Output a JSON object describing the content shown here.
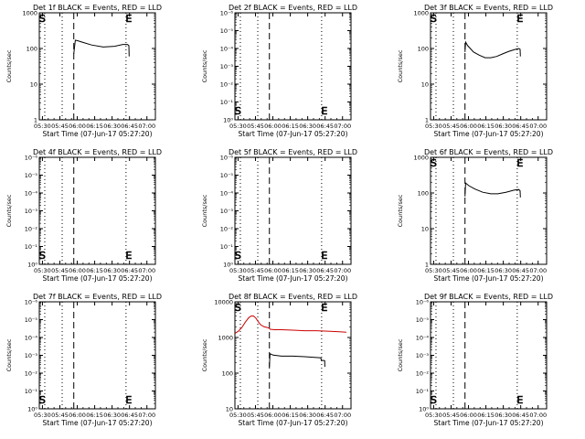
{
  "chart_data": [
    {
      "type": "line",
      "title": "Det 1f BLACK = Events, RED = LLD",
      "xlabel": "Start Time (07-Jun-17 05:27:20)",
      "ylabel": "Counts/sec",
      "x_ticks": [
        "05:30",
        "05:45",
        "06:00",
        "06:15",
        "06:30",
        "06:45",
        "07:00"
      ],
      "x_range_min": [
        0,
        100
      ],
      "yscale": "log",
      "y_ticks": [
        "1",
        "10",
        "100",
        "1000"
      ],
      "ylim": [
        1,
        1000
      ],
      "markers": [
        {
          "label": "S",
          "x_min": 2.7
        },
        {
          "label": "E",
          "x_min": 77
        }
      ],
      "dotted_lines_min": [
        4.7,
        19.7,
        74.7
      ],
      "dashed_lines_min": [
        29.7
      ],
      "series": [
        {
          "color": "#000000",
          "x": [
            29.7,
            31,
            33,
            37,
            45,
            55,
            65,
            72,
            76,
            77.2,
            77.4
          ],
          "y": [
            70,
            170,
            165,
            150,
            125,
            110,
            115,
            130,
            130,
            120,
            60
          ]
        }
      ]
    },
    {
      "type": "line",
      "title": "Det 2f BLACK = Events, RED = LLD",
      "xlabel": "Start Time (07-Jun-17 05:27:20)",
      "ylabel": "Counts/sec",
      "x_ticks": [
        "05:30",
        "05:45",
        "06:00",
        "06:15",
        "06:30",
        "06:45",
        "07:00"
      ],
      "x_range_min": [
        0,
        100
      ],
      "yscale": "log",
      "y_ticks": [
        "10⁰",
        "10⁻¹",
        "10⁻²",
        "10⁻³",
        "10⁻⁴",
        "10⁻⁵",
        "10⁻⁶"
      ],
      "markers": [
        {
          "label": "S",
          "x_min": 2.7
        },
        {
          "label": "E",
          "x_min": 77
        }
      ],
      "dotted_lines_min": [
        4.7,
        19.7,
        74.7
      ],
      "dashed_lines_min": [
        29.7
      ],
      "series": []
    },
    {
      "type": "line",
      "title": "Det 3f BLACK = Events, RED = LLD",
      "xlabel": "Start Time (07-Jun-17 05:27:20)",
      "ylabel": "Counts/sec",
      "x_ticks": [
        "05:30",
        "05:45",
        "06:00",
        "06:15",
        "06:30",
        "06:45",
        "07:00"
      ],
      "x_range_min": [
        0,
        100
      ],
      "yscale": "log",
      "y_ticks": [
        "1",
        "10",
        "100",
        "1000"
      ],
      "ylim": [
        1,
        1000
      ],
      "markers": [
        {
          "label": "S",
          "x_min": 2.7
        },
        {
          "label": "E",
          "x_min": 77
        }
      ],
      "dotted_lines_min": [
        4.7,
        19.7,
        74.7
      ],
      "dashed_lines_min": [
        29.7
      ],
      "series": [
        {
          "color": "#000000",
          "x": [
            29.7,
            30.2,
            32,
            37,
            42,
            47,
            52,
            57,
            62,
            67,
            72,
            76,
            77.2,
            77.4
          ],
          "y": [
            80,
            150,
            120,
            80,
            65,
            55,
            55,
            60,
            70,
            82,
            92,
            100,
            95,
            60
          ]
        }
      ]
    },
    {
      "type": "line",
      "title": "Det 4f BLACK = Events, RED = LLD",
      "xlabel": "Start Time (07-Jun-17 05:27:20)",
      "ylabel": "Counts/sec",
      "x_ticks": [
        "05:30",
        "05:45",
        "06:00",
        "06:15",
        "06:30",
        "06:45",
        "07:00"
      ],
      "x_range_min": [
        0,
        100
      ],
      "yscale": "log",
      "y_ticks": [
        "10⁰",
        "10⁻¹",
        "10⁻²",
        "10⁻³",
        "10⁻⁴",
        "10⁻⁵",
        "10⁻⁶"
      ],
      "markers": [
        {
          "label": "S",
          "x_min": 2.7
        },
        {
          "label": "E",
          "x_min": 77
        }
      ],
      "dotted_lines_min": [
        4.7,
        19.7,
        74.7
      ],
      "dashed_lines_min": [
        29.7
      ],
      "series": []
    },
    {
      "type": "line",
      "title": "Det 5f BLACK = Events, RED = LLD",
      "xlabel": "Start Time (07-Jun-17 05:27:20)",
      "ylabel": "Counts/sec",
      "x_ticks": [
        "05:30",
        "05:45",
        "06:00",
        "06:15",
        "06:30",
        "06:45",
        "07:00"
      ],
      "x_range_min": [
        0,
        100
      ],
      "yscale": "log",
      "y_ticks": [
        "10⁰",
        "10⁻¹",
        "10⁻²",
        "10⁻³",
        "10⁻⁴",
        "10⁻⁵",
        "10⁻⁶"
      ],
      "markers": [
        {
          "label": "S",
          "x_min": 2.7
        },
        {
          "label": "E",
          "x_min": 77
        }
      ],
      "dotted_lines_min": [
        4.7,
        19.7,
        74.7
      ],
      "dashed_lines_min": [
        29.7
      ],
      "series": []
    },
    {
      "type": "line",
      "title": "Det 6f BLACK = Events, RED = LLD",
      "xlabel": "Start Time (07-Jun-17 05:27:20)",
      "ylabel": "Counts/sec",
      "x_ticks": [
        "05:30",
        "05:45",
        "06:00",
        "06:15",
        "06:30",
        "06:45",
        "07:00"
      ],
      "x_range_min": [
        0,
        100
      ],
      "yscale": "log",
      "y_ticks": [
        "1",
        "10",
        "100",
        "1000"
      ],
      "ylim": [
        1,
        1000
      ],
      "markers": [
        {
          "label": "S",
          "x_min": 2.7
        },
        {
          "label": "E",
          "x_min": 77
        }
      ],
      "dotted_lines_min": [
        4.7,
        19.7,
        74.7
      ],
      "dashed_lines_min": [
        29.7
      ],
      "series": [
        {
          "color": "#000000",
          "x": [
            29.7,
            30.2,
            33,
            38,
            45,
            52,
            58,
            65,
            72,
            76,
            77.2,
            77.4
          ],
          "y": [
            80,
            190,
            160,
            130,
            105,
            95,
            95,
            105,
            120,
            125,
            115,
            75
          ]
        }
      ]
    },
    {
      "type": "line",
      "title": "Det 7f BLACK = Events, RED = LLD",
      "xlabel": "Start Time (07-Jun-17 05:27:20)",
      "ylabel": "Counts/sec",
      "x_ticks": [
        "05:30",
        "05:45",
        "06:00",
        "06:15",
        "06:30",
        "06:45",
        "07:00"
      ],
      "x_range_min": [
        0,
        100
      ],
      "yscale": "log",
      "y_ticks": [
        "10⁰",
        "10⁻¹",
        "10⁻²",
        "10⁻³",
        "10⁻⁴",
        "10⁻⁵",
        "10⁻⁶"
      ],
      "markers": [
        {
          "label": "S",
          "x_min": 2.7
        },
        {
          "label": "E",
          "x_min": 77
        }
      ],
      "dotted_lines_min": [
        4.7,
        19.7,
        74.7
      ],
      "dashed_lines_min": [
        29.7
      ],
      "series": []
    },
    {
      "type": "line",
      "title": "Det 8f BLACK = Events, RED = LLD",
      "xlabel": "Start Time (07-Jun-17 05:27:20)",
      "ylabel": "Counts/sec",
      "x_ticks": [
        "05:30",
        "05:45",
        "06:00",
        "06:15",
        "06:30",
        "06:45",
        "07:00"
      ],
      "x_range_min": [
        0,
        100
      ],
      "yscale": "log",
      "y_ticks": [
        "10",
        "100",
        "1000",
        "10000"
      ],
      "ylim": [
        10,
        10000
      ],
      "markers": [
        {
          "label": "S",
          "x_min": 2.7
        },
        {
          "label": "E",
          "x_min": 77
        }
      ],
      "dotted_lines_min": [
        4.7,
        19.7,
        74.7
      ],
      "dashed_lines_min": [
        29.7
      ],
      "series": [
        {
          "color": "#000000",
          "x": [
            29.7,
            30.2,
            33,
            40,
            50,
            60,
            70,
            74,
            74.4,
            77.3,
            77.5
          ],
          "y": [
            150,
            350,
            320,
            300,
            300,
            290,
            275,
            270,
            230,
            225,
            150
          ]
        },
        {
          "color": "#cc0000",
          "x": [
            0,
            3,
            6,
            9,
            12,
            14,
            16,
            18,
            20,
            22,
            25,
            28,
            29.7,
            30.3,
            34,
            40,
            50,
            60,
            70,
            80,
            90,
            96
          ],
          "y": [
            1300,
            1500,
            1900,
            2700,
            3600,
            4000,
            4000,
            3500,
            2800,
            2300,
            2000,
            1900,
            1800,
            1700,
            1650,
            1650,
            1600,
            1550,
            1550,
            1500,
            1450,
            1400
          ]
        }
      ]
    },
    {
      "type": "line",
      "title": "Det 9f BLACK = Events, RED = LLD",
      "xlabel": "Start Time (07-Jun-17 05:27:20)",
      "ylabel": "Counts/sec",
      "x_ticks": [
        "05:30",
        "05:45",
        "06:00",
        "06:15",
        "06:30",
        "06:45",
        "07:00"
      ],
      "x_range_min": [
        0,
        100
      ],
      "yscale": "log",
      "y_ticks": [
        "10⁰",
        "10⁻¹",
        "10⁻²",
        "10⁻³",
        "10⁻⁴",
        "10⁻⁵",
        "10⁻⁶"
      ],
      "markers": [
        {
          "label": "S",
          "x_min": 2.7
        },
        {
          "label": "E",
          "x_min": 77
        }
      ],
      "dotted_lines_min": [
        4.7,
        19.7,
        74.7
      ],
      "dashed_lines_min": [
        29.7
      ],
      "series": []
    }
  ]
}
